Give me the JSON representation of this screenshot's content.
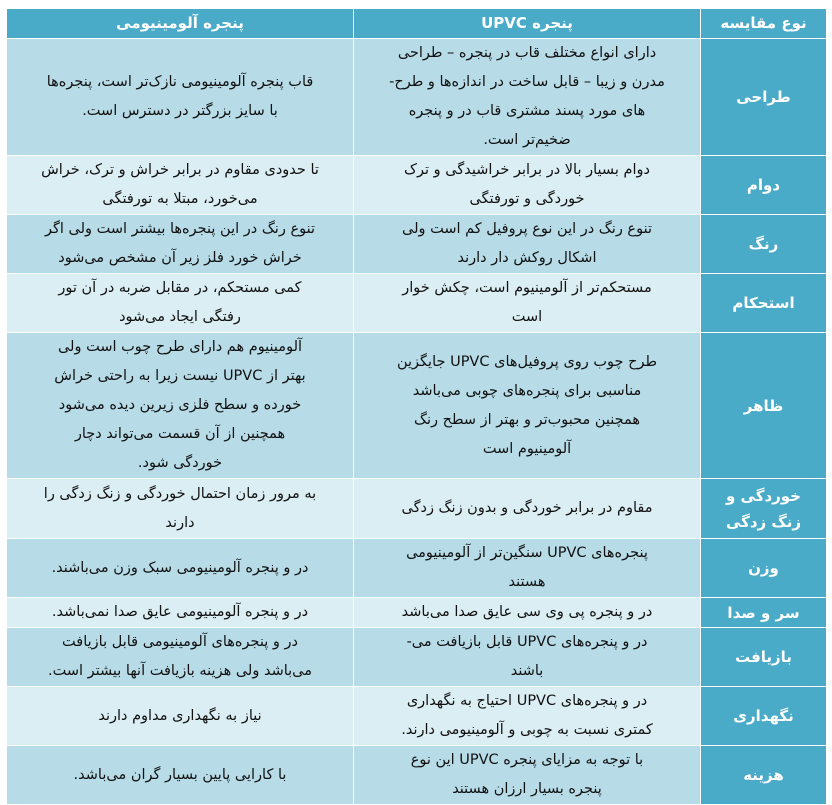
{
  "table": {
    "headers": [
      "نوع مقایسه",
      "پنجره UPVC",
      "پنجره آلومینیومی"
    ],
    "rows": [
      {
        "label": [
          "طراحی"
        ],
        "upvc": [
          "دارای انواع مختلف قاب در پنجره – طراحی",
          "مدرن و زیبا – قابل ساخت در اندازه‌ها و طرح-",
          "های مورد پسند مشتری قاب در و پنجره",
          "ضخیم‌تر است."
        ],
        "aluminum": [
          "قاب پنجره آلومینیومی نازک‌تر است، پنجره‌ها",
          "با سایز بزرگتر در دسترس است."
        ]
      },
      {
        "label": [
          "دوام"
        ],
        "upvc": [
          "دوام بسیار بالا در برابر خراشیدگی و ترک",
          "خوردگی و تورفتگی"
        ],
        "aluminum": [
          "تا حدودی مقاوم در برابر خراش و ترک، خراش",
          "می‌خورد، مبتلا به تورفتگی"
        ]
      },
      {
        "label": [
          "رنگ"
        ],
        "upvc": [
          "تنوع رنگ در این نوع پروفیل کم است ولی",
          "اشکال روکش دار دارند"
        ],
        "aluminum": [
          "تنوع رنگ در این پنجره‌ها بیشتر است ولی اگر",
          "خراش خورد فلز زیر آن مشخص می‌شود"
        ]
      },
      {
        "label": [
          "استحکام"
        ],
        "upvc": [
          "مستحکم‌تر از آلومینیوم است، چکش خوار",
          "است"
        ],
        "aluminum": [
          "کمی مستحکم، در مقابل ضربه در آن تور",
          "رفتگی ایجاد می‌شود"
        ]
      },
      {
        "label": [
          "ظاهر"
        ],
        "upvc": [
          "طرح چوب روی پروفیل‌های UPVC جایگزین",
          "مناسبی برای پنجره‌های چوبی می‌باشد",
          "همچنین محبوب‌تر و بهتر از سطح رنگ",
          "آلومینیوم است"
        ],
        "aluminum": [
          "آلومینیوم هم دارای طرح چوب است ولی",
          "بهتر از UPVC  نیست زیرا به راحتی خراش",
          "خورده و سطح فلزی زیرین دیده می‌شود",
          "همچنین از آن قسمت می‌تواند دچار",
          "خوردگی شود."
        ]
      },
      {
        "label": [
          "خوردگی و",
          "زنگ زدگی"
        ],
        "upvc": [
          "مقاوم در برابر خوردگی و بدون زنگ زدگی"
        ],
        "aluminum": [
          "به مرور زمان احتمال خوردگی و زنگ زدگی را",
          "دارند"
        ]
      },
      {
        "label": [
          "وزن"
        ],
        "upvc": [
          "پنجره‌های UPVC سنگین‌تر از آلومینیومی",
          "هستند"
        ],
        "aluminum": [
          "در و پنجره آلومینیومی سبک وزن می‌باشند."
        ]
      },
      {
        "label": [
          "سر و صدا"
        ],
        "upvc": [
          "در و پنجره پی وی سی عایق صدا می‌باشد"
        ],
        "aluminum": [
          "در و پنجره آلومینیومی عایق صدا نمی‌باشد."
        ]
      },
      {
        "label": [
          "بازیافت"
        ],
        "upvc": [
          "در و پنجره‌های UPVC قابل بازیافت می-",
          "باشند"
        ],
        "aluminum": [
          "در و پنجره‌های آلومینیومی قابل بازیافت",
          "می‌باشد ولی هزینه بازیافت آنها بیشتر است."
        ]
      },
      {
        "label": [
          "نگهداری"
        ],
        "upvc": [
          "در و پنجره‌های UPVC احتیاج به نگهداری",
          "کمتری نسبت به چوبی و آلومینیومی دارند."
        ],
        "aluminum": [
          "نیاز به نگهداری مداوم دارند"
        ]
      },
      {
        "label": [
          "هزینه"
        ],
        "upvc": [
          "با توجه به مزایای پنجره UPVC این نوع",
          "پنجره بسیار ارزان هستند"
        ],
        "aluminum": [
          "با کارایی پایین بسیار گران می‌باشد."
        ]
      }
    ]
  },
  "colors": {
    "header": "#4aabc8",
    "row_dark": "#b7dce8",
    "row_light": "#dbeef4"
  }
}
